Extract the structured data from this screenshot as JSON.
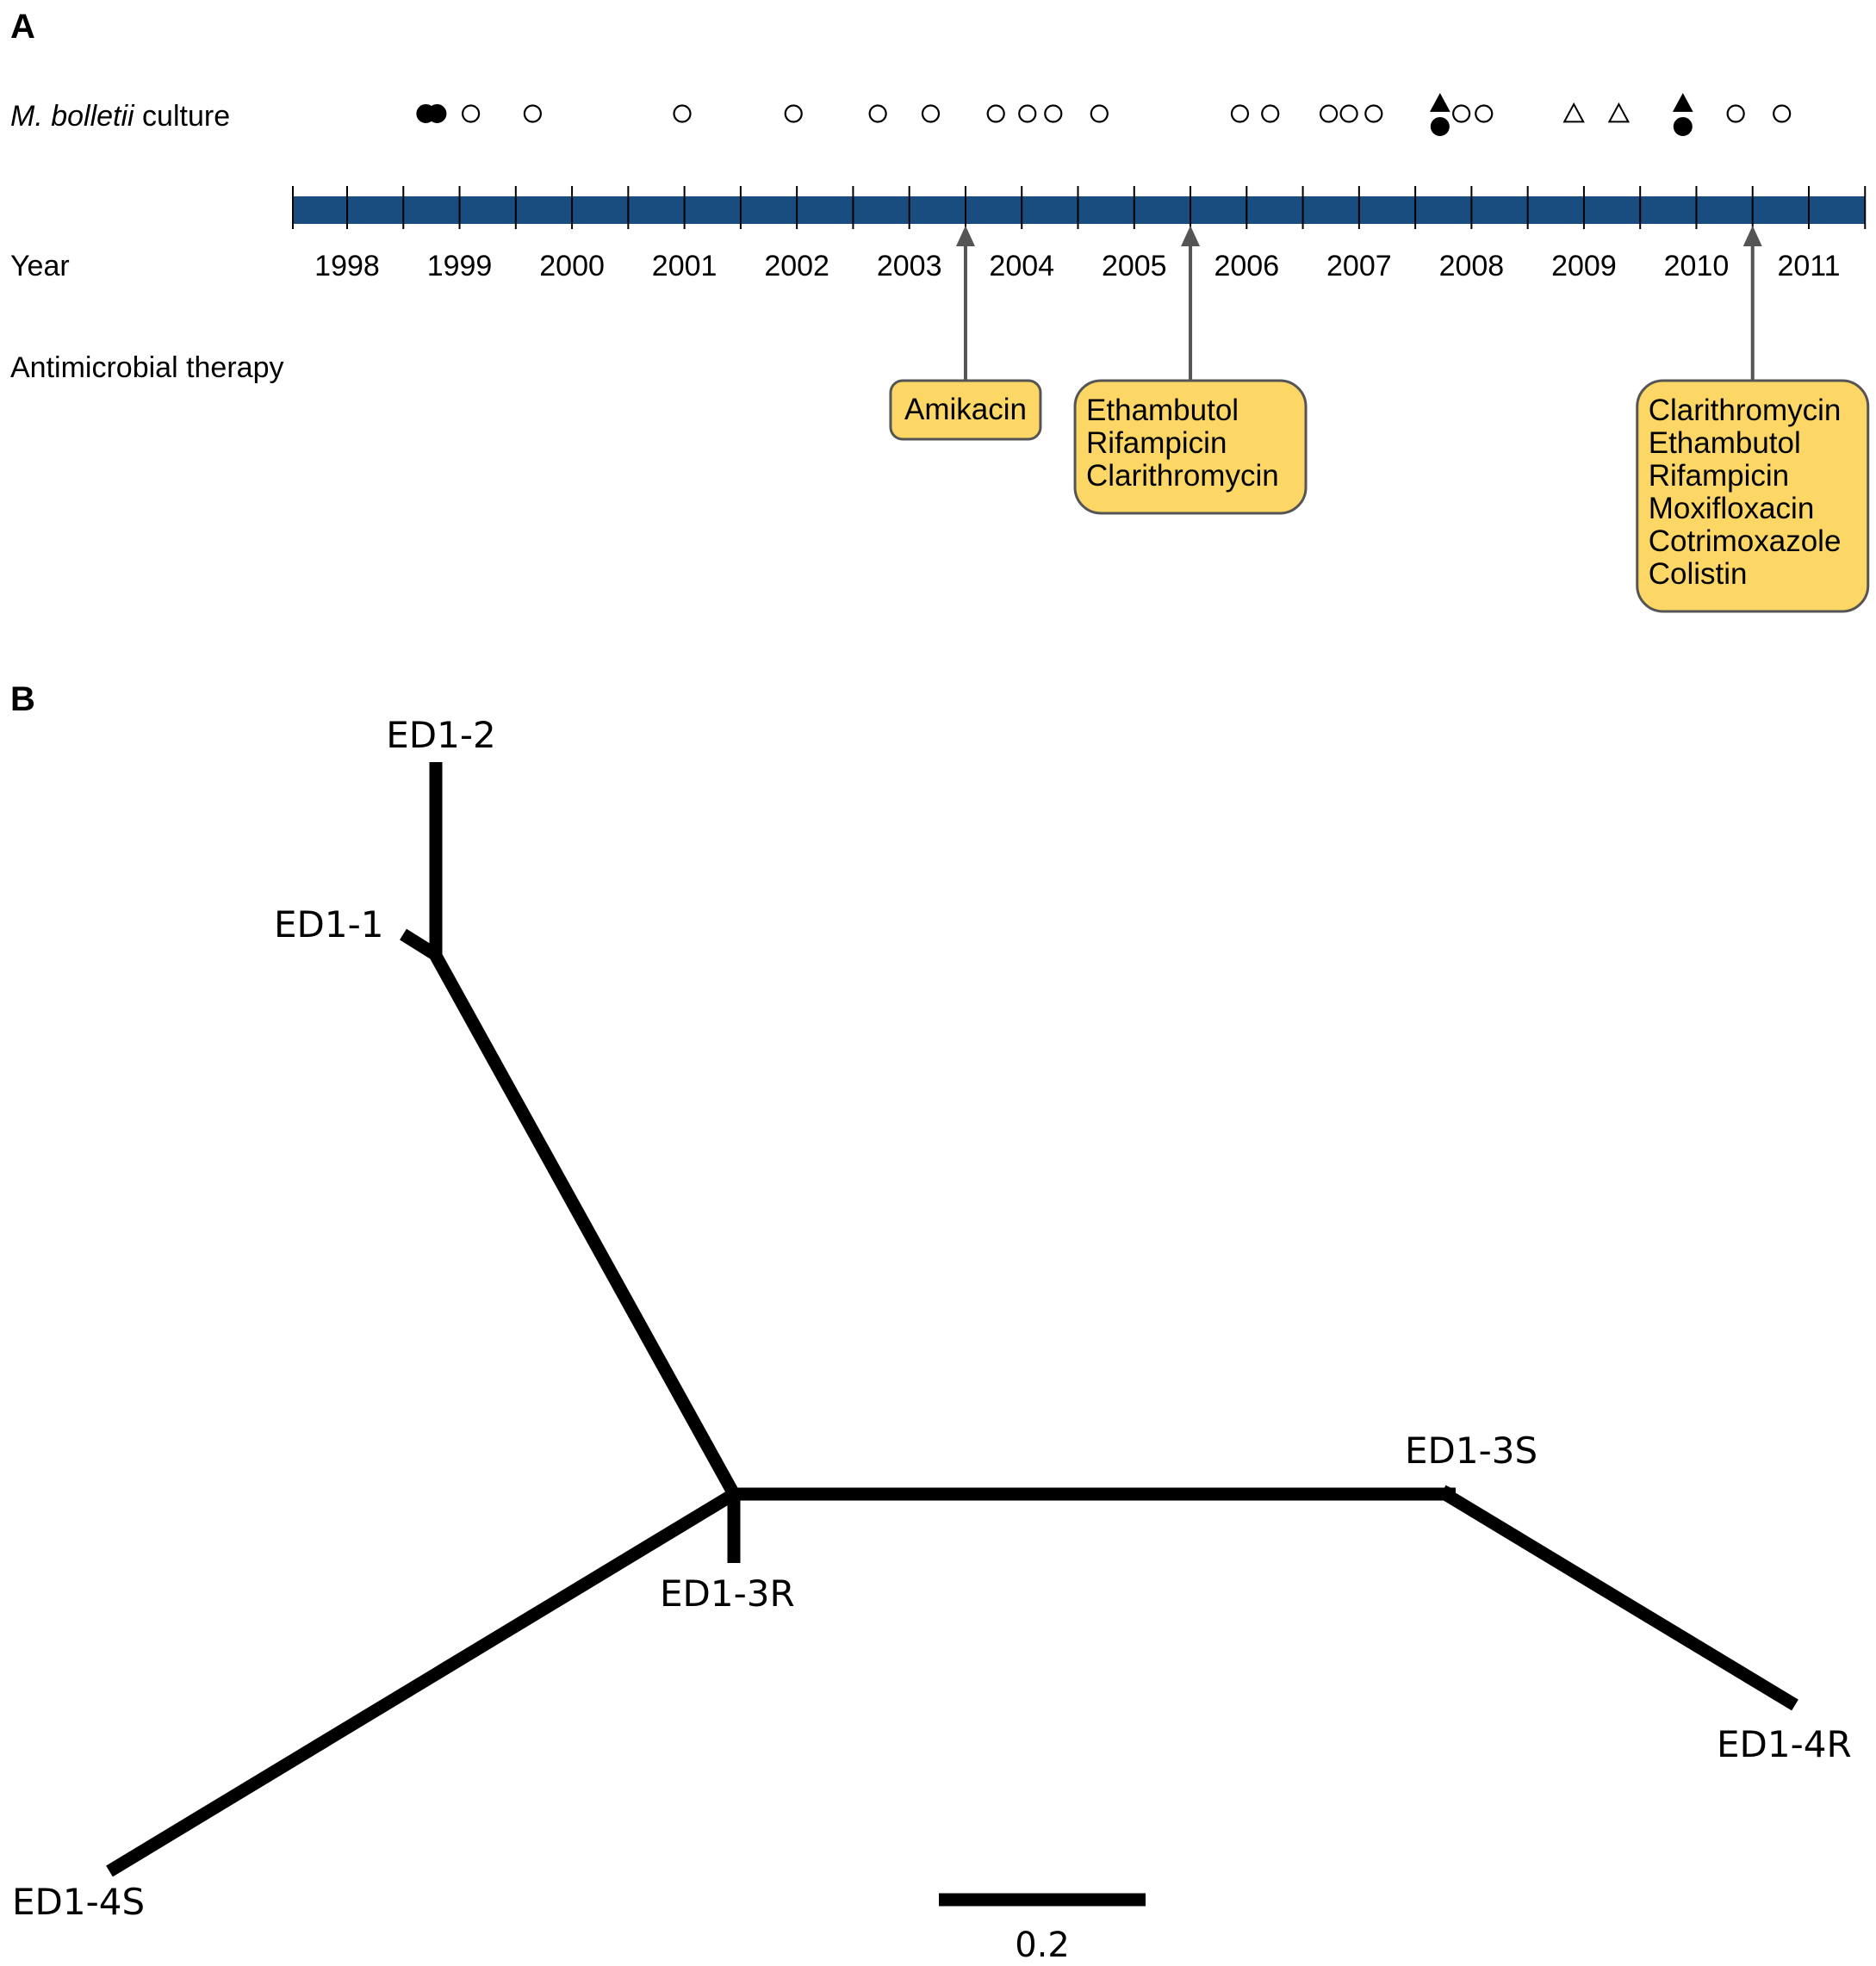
{
  "panel_a": {
    "letter": "A",
    "culture_label_italic": "M. bolletii",
    "culture_label_rest": " culture",
    "year_row_label": "Year",
    "therapy_row_label": "Antimicrobial therapy",
    "years": [
      "1998",
      "1999",
      "2000",
      "2001",
      "2002",
      "2003",
      "2004",
      "2005",
      "2006",
      "2007",
      "2008",
      "2009",
      "2010",
      "2011"
    ],
    "timeline_color": "#1a4d7f",
    "box_fill": "#fcd765",
    "markers": [
      {
        "t": 1998.7,
        "shape": "filled-circle"
      },
      {
        "t": 1998.8,
        "shape": "filled-circle"
      },
      {
        "t": 1999.1,
        "shape": "open-circle"
      },
      {
        "t": 1999.65,
        "shape": "open-circle"
      },
      {
        "t": 2000.98,
        "shape": "open-circle"
      },
      {
        "t": 2001.97,
        "shape": "open-circle"
      },
      {
        "t": 2002.72,
        "shape": "open-circle"
      },
      {
        "t": 2003.19,
        "shape": "open-circle"
      },
      {
        "t": 2003.77,
        "shape": "open-circle"
      },
      {
        "t": 2004.05,
        "shape": "open-circle"
      },
      {
        "t": 2004.28,
        "shape": "open-circle"
      },
      {
        "t": 2004.69,
        "shape": "open-circle"
      },
      {
        "t": 2005.94,
        "shape": "open-circle"
      },
      {
        "t": 2006.21,
        "shape": "open-circle"
      },
      {
        "t": 2006.73,
        "shape": "open-circle"
      },
      {
        "t": 2006.91,
        "shape": "open-circle"
      },
      {
        "t": 2007.13,
        "shape": "open-circle"
      },
      {
        "t": 2007.72,
        "shape": "filled-circle"
      },
      {
        "t": 2007.72,
        "shape": "filled-triangle"
      },
      {
        "t": 2007.91,
        "shape": "open-circle"
      },
      {
        "t": 2008.11,
        "shape": "open-circle"
      },
      {
        "t": 2008.91,
        "shape": "open-triangle"
      },
      {
        "t": 2009.31,
        "shape": "open-triangle"
      },
      {
        "t": 2009.88,
        "shape": "filled-circle"
      },
      {
        "t": 2009.88,
        "shape": "filled-triangle"
      },
      {
        "t": 2010.35,
        "shape": "open-circle"
      },
      {
        "t": 2010.76,
        "shape": "open-circle"
      }
    ],
    "therapies": [
      {
        "t": 2003.5,
        "drugs": [
          "Amikacin"
        ]
      },
      {
        "t": 2005.5,
        "drugs": [
          "Ethambutol",
          "Rifampicin",
          "Clarithromycin"
        ]
      },
      {
        "t": 2010.5,
        "drugs": [
          "Clarithromycin",
          "Ethambutol",
          "Rifampicin",
          "Moxifloxacin",
          "Cotrimoxazole",
          "Colistin"
        ]
      }
    ]
  },
  "panel_b": {
    "letter": "B",
    "leaves": [
      "ED1-2",
      "ED1-1",
      "ED1-3S",
      "ED1-3R",
      "ED1-4R",
      "ED1-4S"
    ],
    "scale_bar_label": "0.2"
  }
}
